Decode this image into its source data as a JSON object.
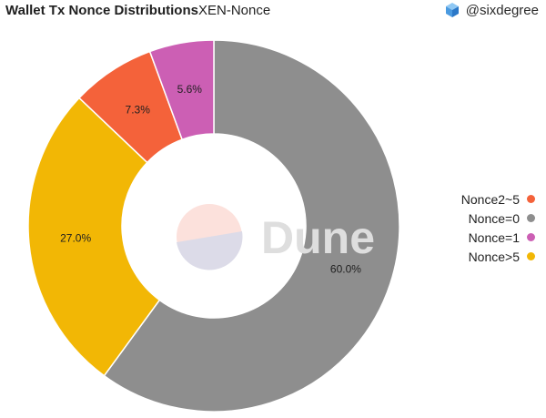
{
  "header": {
    "title": "Wallet Tx Nonce Distributions",
    "subtitle": "XEN-Nonce",
    "author": "@sixdegree"
  },
  "watermark": {
    "text": "Dune"
  },
  "colors": {
    "Nonce2~5": "#f4623a",
    "Nonce=0": "#8e8e8e",
    "Nonce=1": "#cc5fb4",
    "Nonce>5": "#f2b705"
  },
  "chart_data": {
    "type": "pie",
    "donut": true,
    "slices": [
      {
        "label": "Nonce=0",
        "value": 60.0,
        "display": "60.0%",
        "color": "#8e8e8e"
      },
      {
        "label": "Nonce>5",
        "value": 27.0,
        "display": "27.0%",
        "color": "#f2b705"
      },
      {
        "label": "Nonce2~5",
        "value": 7.3,
        "display": "7.3%",
        "color": "#f4623a"
      },
      {
        "label": "Nonce=1",
        "value": 5.6,
        "display": "5.6%",
        "color": "#cc5fb4"
      }
    ],
    "legend": {
      "position": "right",
      "entries": [
        {
          "label": "Nonce2~5",
          "color": "#f4623a"
        },
        {
          "label": "Nonce=0",
          "color": "#8e8e8e"
        },
        {
          "label": "Nonce=1",
          "color": "#cc5fb4"
        },
        {
          "label": "Nonce>5",
          "color": "#f2b705"
        }
      ]
    }
  }
}
